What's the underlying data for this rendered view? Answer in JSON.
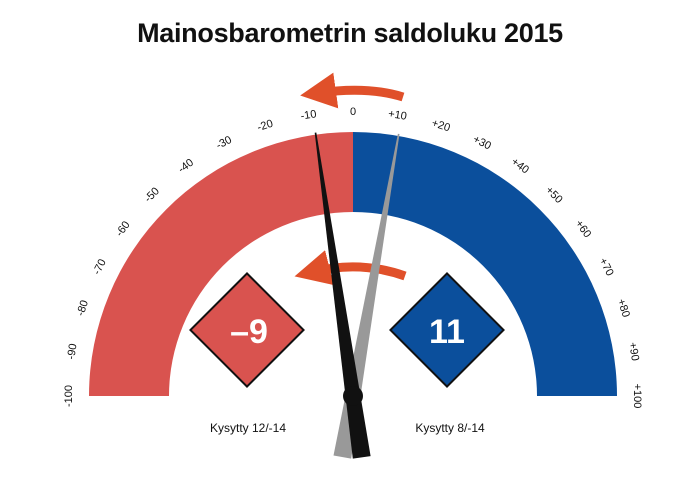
{
  "title": "Mainosbarometrin saldoluku 2015",
  "chart_data": {
    "type": "gauge",
    "title": "Mainosbarometrin saldoluku 2015",
    "range": [
      -100,
      100
    ],
    "tick_labels": [
      "-100",
      "-90",
      "-80",
      "-70",
      "-60",
      "-50",
      "-40",
      "-30",
      "-20",
      "-10",
      "0",
      "+10",
      "+20",
      "+30",
      "+40",
      "+50",
      "+60",
      "+70",
      "+80",
      "+90",
      "+100"
    ],
    "tick_values": [
      -100,
      -90,
      -80,
      -70,
      -60,
      -50,
      -40,
      -30,
      -20,
      -10,
      0,
      10,
      20,
      30,
      40,
      50,
      60,
      70,
      80,
      90,
      100
    ],
    "negative_color": "#d9534f",
    "positive_color": "#0b4f9c",
    "arrow_color": "#e0502a",
    "readings": [
      {
        "label": "Kysytty 12/-14",
        "value": -9,
        "display": "–9",
        "color": "#d9534f",
        "needle_color": "#111111"
      },
      {
        "label": "Kysytty 8/-14",
        "value": 11,
        "display": "11",
        "color": "#0b4f9c",
        "needle_color": "#999999"
      }
    ]
  }
}
